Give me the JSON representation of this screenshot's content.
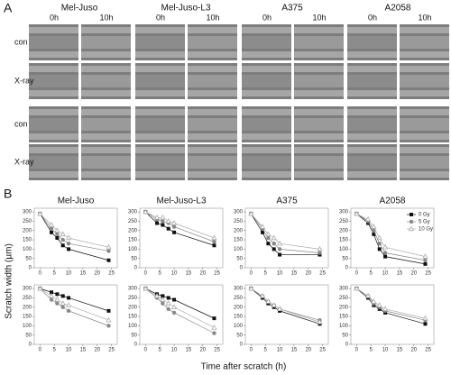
{
  "panel_a": {
    "label": "A",
    "cell_lines": [
      "Mel-Juso",
      "Mel-Juso-L3",
      "A375",
      "A2058"
    ],
    "times": [
      "0h",
      "10h"
    ],
    "rows": [
      "con",
      "X-ray",
      "con",
      "X-ray"
    ]
  },
  "panel_b": {
    "label": "B",
    "y_label": "Scratch width (µm)",
    "x_label": "Time after scratch (h)"
  },
  "chart_data": [
    {
      "type": "line",
      "title": "Mel-Juso",
      "x": [
        0,
        4,
        6,
        8,
        10,
        24
      ],
      "xlim": [
        -2,
        27
      ],
      "ylim": [
        0,
        320
      ],
      "xticks": [
        0,
        5,
        10,
        15,
        20,
        25
      ],
      "yticks": [
        0,
        50,
        100,
        150,
        200,
        250,
        300
      ],
      "series": [
        {
          "color": "#111111",
          "marker": "square",
          "values": [
            290,
            190,
            160,
            120,
            100,
            40
          ]
        },
        {
          "color": "#888888",
          "marker": "circle",
          "values": [
            290,
            210,
            180,
            150,
            130,
            90
          ]
        },
        {
          "color": "#aaaaaa",
          "marker": "triangle",
          "values": [
            290,
            230,
            200,
            180,
            160,
            110
          ]
        }
      ]
    },
    {
      "type": "line",
      "title": "Mel-Juso-L3",
      "x": [
        0,
        4,
        6,
        8,
        10,
        24
      ],
      "xlim": [
        -2,
        27
      ],
      "ylim": [
        0,
        320
      ],
      "xticks": [
        0,
        5,
        10,
        15,
        20,
        25
      ],
      "yticks": [
        0,
        50,
        100,
        150,
        200,
        250,
        300
      ],
      "series": [
        {
          "color": "#111111",
          "marker": "square",
          "values": [
            300,
            240,
            230,
            210,
            190,
            120
          ]
        },
        {
          "color": "#888888",
          "marker": "circle",
          "values": [
            300,
            260,
            250,
            240,
            220,
            140
          ]
        },
        {
          "color": "#aaaaaa",
          "marker": "triangle",
          "values": [
            300,
            270,
            270,
            250,
            240,
            160
          ]
        }
      ]
    },
    {
      "type": "line",
      "title": "A375",
      "x": [
        0,
        4,
        6,
        8,
        10,
        24
      ],
      "xlim": [
        -2,
        27
      ],
      "ylim": [
        0,
        320
      ],
      "xticks": [
        0,
        5,
        10,
        15,
        20,
        25
      ],
      "yticks": [
        0,
        50,
        100,
        150,
        200,
        250,
        300
      ],
      "series": [
        {
          "color": "#111111",
          "marker": "square",
          "values": [
            290,
            190,
            130,
            100,
            70,
            70
          ]
        },
        {
          "color": "#888888",
          "marker": "circle",
          "values": [
            290,
            210,
            160,
            130,
            100,
            80
          ]
        },
        {
          "color": "#aaaaaa",
          "marker": "triangle",
          "values": [
            290,
            220,
            180,
            160,
            130,
            100
          ]
        }
      ]
    },
    {
      "type": "line",
      "title": "A2058",
      "x": [
        0,
        4,
        6,
        8,
        10,
        24
      ],
      "xlim": [
        -2,
        27
      ],
      "ylim": [
        0,
        320
      ],
      "xticks": [
        0,
        5,
        10,
        15,
        20,
        25
      ],
      "yticks": [
        0,
        50,
        100,
        150,
        200,
        250,
        300
      ],
      "legend": "upper right",
      "series": [
        {
          "name": "0 Gy",
          "color": "#111111",
          "marker": "square",
          "values": [
            290,
            240,
            180,
            100,
            60,
            20
          ]
        },
        {
          "name": "5 Gy",
          "color": "#888888",
          "marker": "circle",
          "values": [
            290,
            250,
            200,
            130,
            80,
            40
          ]
        },
        {
          "name": "10 Gy",
          "color": "#aaaaaa",
          "marker": "triangle",
          "values": [
            290,
            260,
            220,
            160,
            110,
            60
          ]
        }
      ]
    },
    {
      "type": "line",
      "x": [
        0,
        4,
        6,
        8,
        10,
        24
      ],
      "xlim": [
        -2,
        27
      ],
      "ylim": [
        0,
        320
      ],
      "xticks": [
        0,
        5,
        10,
        15,
        20,
        25
      ],
      "yticks": [
        0,
        50,
        100,
        150,
        200,
        250,
        300
      ],
      "series": [
        {
          "color": "#111111",
          "marker": "square",
          "values": [
            300,
            280,
            270,
            260,
            250,
            180
          ]
        },
        {
          "color": "#888888",
          "marker": "circle",
          "values": [
            300,
            240,
            220,
            200,
            180,
            100
          ]
        },
        {
          "color": "#aaaaaa",
          "marker": "triangle",
          "values": [
            300,
            260,
            240,
            220,
            210,
            130
          ]
        }
      ]
    },
    {
      "type": "line",
      "x": [
        0,
        4,
        6,
        8,
        10,
        24
      ],
      "xlim": [
        -2,
        27
      ],
      "ylim": [
        0,
        320
      ],
      "xticks": [
        0,
        5,
        10,
        15,
        20,
        25
      ],
      "yticks": [
        0,
        50,
        100,
        150,
        200,
        250,
        300
      ],
      "series": [
        {
          "color": "#111111",
          "marker": "square",
          "values": [
            300,
            270,
            260,
            250,
            240,
            140
          ]
        },
        {
          "color": "#888888",
          "marker": "circle",
          "values": [
            300,
            250,
            220,
            190,
            170,
            60
          ]
        },
        {
          "color": "#aaaaaa",
          "marker": "triangle",
          "values": [
            300,
            260,
            240,
            220,
            200,
            90
          ]
        }
      ]
    },
    {
      "type": "line",
      "x": [
        0,
        4,
        6,
        8,
        10,
        24
      ],
      "xlim": [
        -2,
        27
      ],
      "ylim": [
        0,
        320
      ],
      "xticks": [
        0,
        5,
        10,
        15,
        20,
        25
      ],
      "yticks": [
        0,
        50,
        100,
        150,
        200,
        250,
        300
      ],
      "series": [
        {
          "color": "#111111",
          "marker": "square",
          "values": [
            300,
            250,
            220,
            200,
            180,
            110
          ]
        },
        {
          "color": "#888888",
          "marker": "circle",
          "values": [
            300,
            260,
            230,
            210,
            190,
            130
          ]
        },
        {
          "color": "#aaaaaa",
          "marker": "triangle",
          "values": [
            300,
            260,
            230,
            210,
            190,
            120
          ]
        }
      ]
    },
    {
      "type": "line",
      "x": [
        0,
        4,
        6,
        8,
        10,
        24
      ],
      "xlim": [
        -2,
        27
      ],
      "ylim": [
        0,
        320
      ],
      "xticks": [
        0,
        5,
        10,
        15,
        20,
        25
      ],
      "yticks": [
        0,
        50,
        100,
        150,
        200,
        250,
        300
      ],
      "series": [
        {
          "color": "#111111",
          "marker": "square",
          "values": [
            300,
            250,
            210,
            190,
            170,
            110
          ]
        },
        {
          "color": "#888888",
          "marker": "circle",
          "values": [
            300,
            260,
            220,
            200,
            180,
            130
          ]
        },
        {
          "color": "#aaaaaa",
          "marker": "triangle",
          "values": [
            300,
            260,
            230,
            210,
            190,
            140
          ]
        }
      ]
    }
  ]
}
